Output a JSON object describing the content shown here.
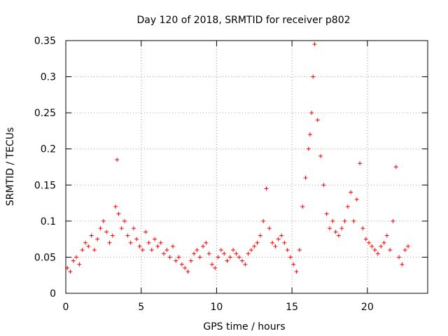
{
  "chart_data": {
    "type": "scatter",
    "title": "Day 120 of 2018, SRMTID for receiver p802",
    "xlabel": "GPS time / hours",
    "ylabel": "SRMTID / TECUs",
    "xlim": [
      0,
      24
    ],
    "ylim": [
      0,
      0.35
    ],
    "xticks": [
      0,
      5,
      10,
      15,
      20
    ],
    "xtick_labels": [
      "0",
      "5",
      "10",
      "15",
      "20"
    ],
    "yticks": [
      0,
      0.05,
      0.1,
      0.15,
      0.2,
      0.25,
      0.3,
      0.35
    ],
    "ytick_labels": [
      "0",
      "0.05",
      "0.1",
      "0.15",
      "0.2",
      "0.25",
      "0.3",
      "0.35"
    ],
    "grid": true,
    "marker": "+",
    "color": "#ff0000",
    "series": [
      {
        "name": "SRMTID",
        "x": [
          0.1,
          0.3,
          0.5,
          0.7,
          0.9,
          1.1,
          1.3,
          1.5,
          1.7,
          1.9,
          2.1,
          2.3,
          2.5,
          2.7,
          2.9,
          3.1,
          3.3,
          3.4,
          3.5,
          3.7,
          3.9,
          4.1,
          4.3,
          4.5,
          4.7,
          4.9,
          5.1,
          5.3,
          5.5,
          5.7,
          5.9,
          6.1,
          6.3,
          6.5,
          6.7,
          6.9,
          7.1,
          7.3,
          7.5,
          7.7,
          7.9,
          8.1,
          8.3,
          8.5,
          8.7,
          8.9,
          9.1,
          9.3,
          9.5,
          9.7,
          9.9,
          10.1,
          10.3,
          10.5,
          10.7,
          10.9,
          11.1,
          11.3,
          11.5,
          11.7,
          11.9,
          12.1,
          12.3,
          12.5,
          12.7,
          12.9,
          13.1,
          13.3,
          13.5,
          13.7,
          13.9,
          14.1,
          14.3,
          14.5,
          14.7,
          14.9,
          15.1,
          15.3,
          15.5,
          15.7,
          15.9,
          16.1,
          16.2,
          16.3,
          16.4,
          16.5,
          16.7,
          16.9,
          17.1,
          17.3,
          17.5,
          17.7,
          17.9,
          18.1,
          18.3,
          18.5,
          18.7,
          18.9,
          19.1,
          19.3,
          19.5,
          19.7,
          19.9,
          20.1,
          20.3,
          20.5,
          20.7,
          20.9,
          21.1,
          21.3,
          21.5,
          21.7,
          21.9,
          22.1,
          22.3,
          22.5,
          22.7
        ],
        "y": [
          0.035,
          0.03,
          0.045,
          0.05,
          0.04,
          0.06,
          0.07,
          0.065,
          0.08,
          0.06,
          0.075,
          0.09,
          0.1,
          0.085,
          0.07,
          0.08,
          0.12,
          0.185,
          0.11,
          0.09,
          0.1,
          0.08,
          0.07,
          0.09,
          0.075,
          0.065,
          0.06,
          0.085,
          0.07,
          0.06,
          0.075,
          0.065,
          0.07,
          0.055,
          0.06,
          0.05,
          0.065,
          0.045,
          0.05,
          0.04,
          0.035,
          0.03,
          0.045,
          0.055,
          0.06,
          0.05,
          0.065,
          0.07,
          0.055,
          0.04,
          0.035,
          0.05,
          0.06,
          0.055,
          0.045,
          0.05,
          0.06,
          0.055,
          0.05,
          0.045,
          0.04,
          0.055,
          0.06,
          0.065,
          0.07,
          0.08,
          0.1,
          0.145,
          0.09,
          0.07,
          0.065,
          0.075,
          0.08,
          0.07,
          0.06,
          0.05,
          0.04,
          0.03,
          0.06,
          0.12,
          0.16,
          0.2,
          0.22,
          0.25,
          0.3,
          0.345,
          0.24,
          0.19,
          0.15,
          0.11,
          0.09,
          0.1,
          0.085,
          0.08,
          0.09,
          0.1,
          0.12,
          0.14,
          0.1,
          0.13,
          0.18,
          0.09,
          0.075,
          0.07,
          0.065,
          0.06,
          0.055,
          0.065,
          0.07,
          0.08,
          0.06,
          0.1,
          0.175,
          0.05,
          0.04,
          0.06,
          0.065
        ]
      }
    ]
  }
}
